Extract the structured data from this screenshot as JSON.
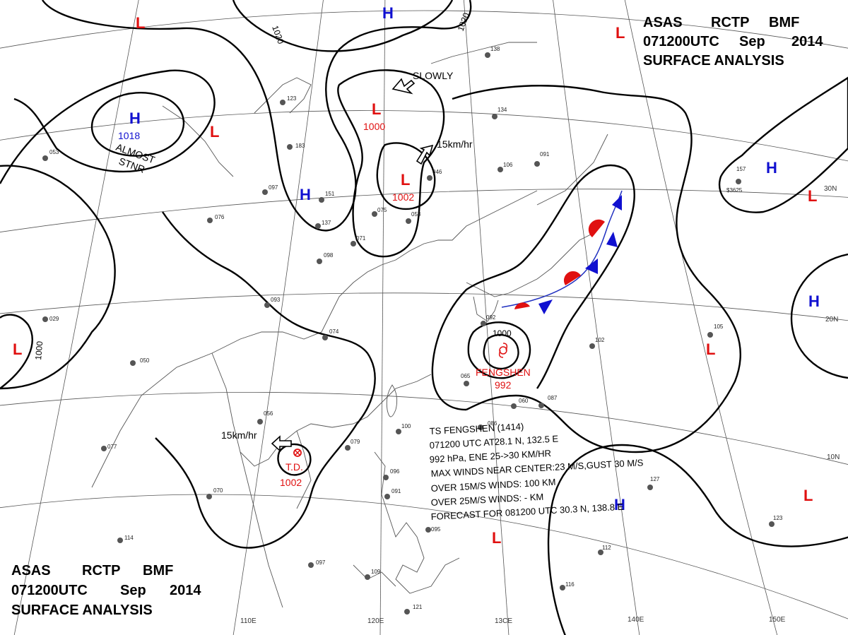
{
  "header_top": {
    "line1": [
      "ASAS",
      "RCTP",
      "BMF"
    ],
    "line2": [
      "071200UTC",
      "Sep",
      "2014"
    ],
    "line3": "SURFACE ANALYSIS"
  },
  "header_bottom": {
    "line1": [
      "ASAS",
      "RCTP",
      "BMF"
    ],
    "line2": [
      "071200UTC",
      "Sep",
      "2014"
    ],
    "line3": "SURFACE ANALYSIS"
  },
  "lon_labels": [
    "110E",
    "120E",
    "13CE",
    "140E",
    "150E"
  ],
  "lat_labels": [
    "30N",
    "20N",
    "10N"
  ],
  "isobar_labels": [
    "1020",
    "1020",
    "1000",
    "1000"
  ],
  "colors": {
    "low": "#e01010",
    "high": "#1010d0",
    "front_warm": "#e01010",
    "front_cold": "#1010d0",
    "isobar": "#000000"
  },
  "pressure_centers": [
    {
      "type": "L",
      "value": ""
    },
    {
      "type": "H",
      "value": ""
    },
    {
      "type": "L",
      "value": ""
    },
    {
      "type": "H",
      "value": "1018"
    },
    {
      "type": "L",
      "value": ""
    },
    {
      "type": "L",
      "value": "1000"
    },
    {
      "type": "L",
      "value": "1002"
    },
    {
      "type": "H",
      "value": ""
    },
    {
      "type": "H",
      "value": ""
    },
    {
      "type": "L",
      "value": ""
    },
    {
      "type": "H",
      "value": ""
    },
    {
      "type": "L",
      "value": ""
    },
    {
      "type": "L",
      "value": ""
    },
    {
      "type": "L",
      "value": ""
    },
    {
      "type": "H",
      "value": ""
    },
    {
      "type": "L",
      "value": ""
    }
  ],
  "typhoon": {
    "name": "FENGSHEN",
    "value": "992"
  },
  "tropical_depression": {
    "label": "T.D.",
    "value": "1002"
  },
  "annotations": {
    "slowly": "SLOWLY",
    "almost": "ALMOST",
    "stnr": "STNR",
    "motion_north": "15km/hr",
    "motion_td": "15km/hr"
  },
  "storm_info": [
    "TS  FENGSHEN  (1414)",
    "071200 UTC   AT28.1 N, 132.5 E",
    "992 hPa, ENE  25->30 KM/HR",
    "MAX WINDS NEAR CENTER:23 M/S,GUST 30 M/S",
    "OVER 15M/S WINDS: 100 KM",
    "OVER 25M/S WINDS: - KM",
    "FORECAST FOR 081200 UTC 30.3 N, 138.8 E"
  ],
  "station_values": [
    "157",
    "$3625",
    "091",
    "106",
    "134",
    "138",
    "087",
    "060",
    "102",
    "105",
    "097",
    "151",
    "137",
    "183",
    "123",
    "075",
    "058",
    "046",
    "071",
    "098",
    "093",
    "074",
    "056",
    "079",
    "100",
    "096",
    "091",
    "095",
    "116",
    "127",
    "123",
    "112",
    "121",
    "109",
    "097",
    "086",
    "065",
    "050",
    "029",
    "077",
    "070",
    "076",
    "053",
    "114",
    "092"
  ]
}
